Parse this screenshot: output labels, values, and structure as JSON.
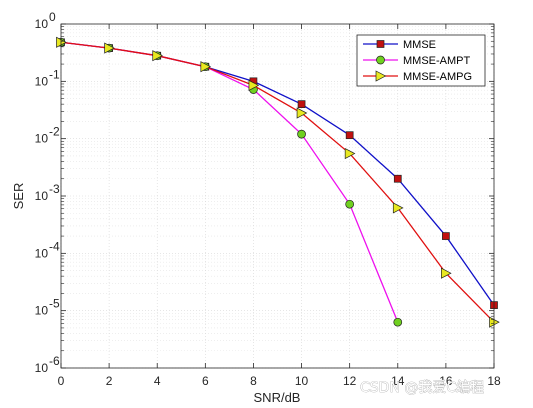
{
  "chart_data": {
    "type": "line",
    "xlabel": "SNR/dB",
    "ylabel": "SER",
    "x_scale": "linear",
    "y_scale": "log",
    "xlim": [
      0,
      18
    ],
    "ylim": [
      1e-06,
      1
    ],
    "x_ticks": [
      0,
      2,
      4,
      6,
      8,
      10,
      12,
      14,
      16,
      18
    ],
    "x_tick_labels": [
      "0",
      "2",
      "4",
      "6",
      "8",
      "10",
      "12",
      "14",
      "16",
      "18"
    ],
    "y_ticks": [
      {
        "value": 1e-06,
        "mantissa": "10",
        "exponent": "-6"
      },
      {
        "value": 1e-05,
        "mantissa": "10",
        "exponent": "-5"
      },
      {
        "value": 0.0001,
        "mantissa": "10",
        "exponent": "-4"
      },
      {
        "value": 0.001,
        "mantissa": "10",
        "exponent": "-3"
      },
      {
        "value": 0.01,
        "mantissa": "10",
        "exponent": "-2"
      },
      {
        "value": 0.1,
        "mantissa": "10",
        "exponent": "-1"
      },
      {
        "value": 1,
        "mantissa": "10",
        "exponent": "0"
      }
    ],
    "grid": true,
    "minor_grid": true,
    "legend_position": "top-right",
    "series": [
      {
        "name": "MMSE",
        "color": "#1010c8",
        "marker": "square",
        "marker_color": "#c01010",
        "x": [
          0,
          2,
          4,
          6,
          8,
          10,
          12,
          14,
          16,
          18
        ],
        "y": [
          0.48,
          0.38,
          0.28,
          0.18,
          0.1,
          0.04,
          0.0115,
          0.002,
          0.0002,
          1.25e-05
        ]
      },
      {
        "name": "MMSE-AMPT",
        "color": "#ee10ee",
        "marker": "circle",
        "marker_color": "#70d020",
        "x": [
          0,
          2,
          4,
          6,
          8,
          10,
          12,
          14
        ],
        "y": [
          0.48,
          0.38,
          0.28,
          0.18,
          0.072,
          0.012,
          0.00072,
          6.3e-06
        ]
      },
      {
        "name": "MMSE-AMPG",
        "color": "#e01010",
        "marker": "triangle-right",
        "marker_color": "#e8e820",
        "x": [
          0,
          2,
          4,
          6,
          8,
          10,
          12,
          14,
          16,
          18
        ],
        "y": [
          0.48,
          0.38,
          0.28,
          0.18,
          0.085,
          0.028,
          0.0055,
          0.00062,
          4.5e-05,
          6.3e-06
        ]
      }
    ]
  },
  "watermark": {
    "text": "CSDN @我爱C编程"
  }
}
